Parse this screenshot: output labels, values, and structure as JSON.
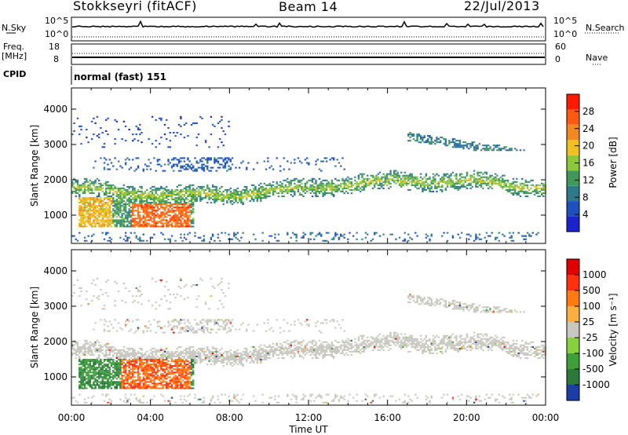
{
  "header": {
    "station": "Stokkseyri (fitACF)",
    "beam": "Beam 14",
    "date": "22/Jul/2013"
  },
  "status_panel": {
    "nsky_label": "N.Sky",
    "nsky_ticks": [
      "10^5",
      "10^0"
    ],
    "nsearch_label": "N.Search",
    "nsearch_ticks": [
      "10^5",
      "10^0"
    ],
    "freq_label": "Freq.",
    "freq_unit": "[MHz]",
    "freq_ticks": [
      "18",
      "8"
    ],
    "nave_label": "Nave",
    "nave_ticks": [
      "60",
      "0"
    ],
    "cpid_label": "CPID",
    "cpid_value": "normal (fast) 151"
  },
  "chart_data": [
    {
      "type": "heatmap",
      "name": "power",
      "ylabel": "Slant Range [km]",
      "y_ticks": [
        "1000",
        "2000",
        "3000",
        "4000"
      ],
      "y_tick_values": [
        1000,
        2000,
        3000,
        4000
      ],
      "ylim": [
        200,
        4600
      ],
      "xlim_hours": [
        0,
        24
      ],
      "colorbar": {
        "label": "Power [dB]",
        "ticks": [
          "4",
          "8",
          "12",
          "16",
          "20",
          "24",
          "28"
        ],
        "tick_values": [
          4,
          8,
          12,
          16,
          20,
          24,
          28
        ],
        "range": [
          0,
          32
        ],
        "colors": [
          "#1a22cc",
          "#1f50c0",
          "#2f7a8a",
          "#3f9a5a",
          "#8cc83a",
          "#f0c020",
          "#f08a20",
          "#ff5a10",
          "#ff1a00"
        ]
      }
    },
    {
      "type": "heatmap",
      "name": "velocity",
      "xlabel": "Time UT",
      "ylabel": "Slant Range [km]",
      "x_ticks": [
        "00:00",
        "04:00",
        "08:00",
        "12:00",
        "16:00",
        "20:00",
        "00:00"
      ],
      "x_tick_values": [
        0,
        4,
        8,
        12,
        16,
        20,
        24
      ],
      "y_ticks": [
        "1000",
        "2000",
        "3000",
        "4000"
      ],
      "y_tick_values": [
        1000,
        2000,
        3000,
        4000
      ],
      "ylim": [
        200,
        4600
      ],
      "xlim_hours": [
        0,
        24
      ],
      "colorbar": {
        "label": "Velocity [m s⁻¹]",
        "ticks": [
          "1000",
          "500",
          "100",
          "25",
          "-25",
          "-100",
          "-500",
          "-1000"
        ],
        "colors": [
          "#1c3ca8",
          "#2a7a3c",
          "#3fa03a",
          "#88d040",
          "#c8c8c0",
          "#f8b040",
          "#ff7a10",
          "#ff3010",
          "#e00000"
        ]
      }
    }
  ]
}
